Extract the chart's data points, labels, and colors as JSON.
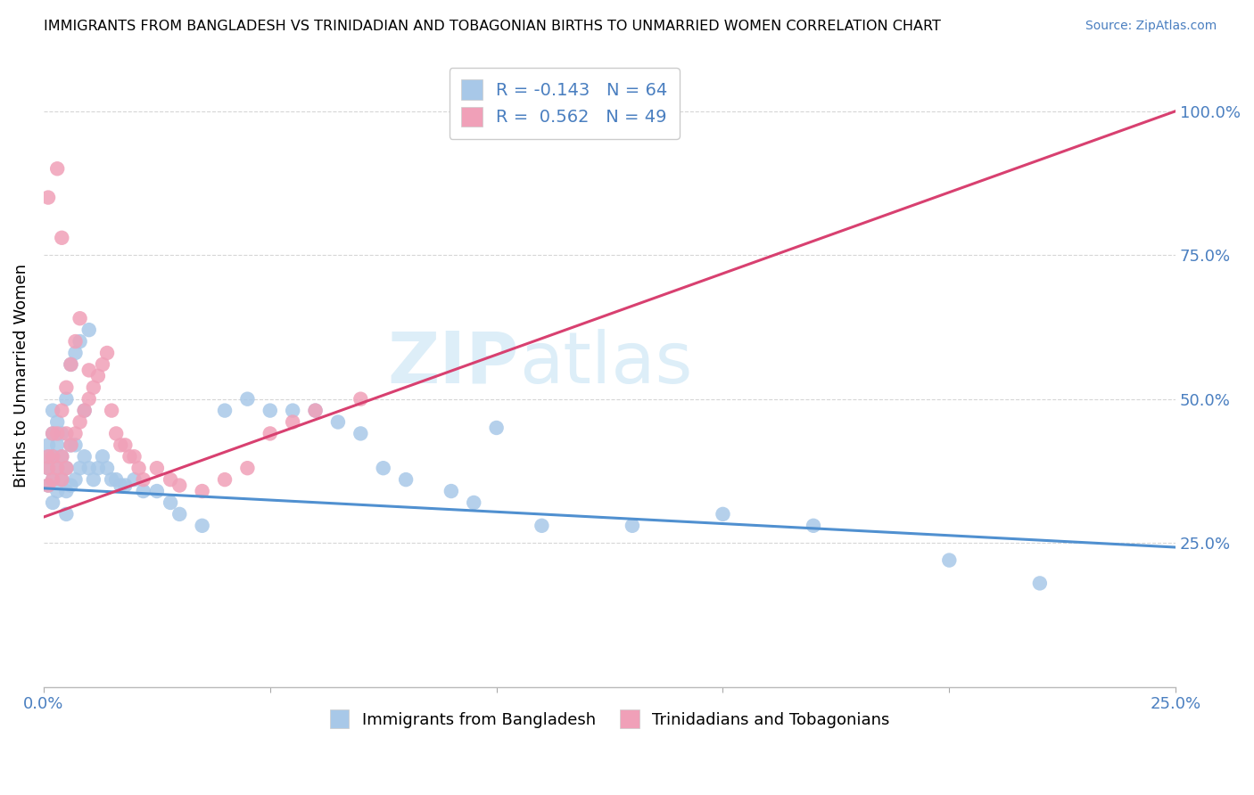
{
  "title": "IMMIGRANTS FROM BANGLADESH VS TRINIDADIAN AND TOBAGONIAN BIRTHS TO UNMARRIED WOMEN CORRELATION CHART",
  "source": "Source: ZipAtlas.com",
  "ylabel": "Births to Unmarried Women",
  "xmin": 0.0,
  "xmax": 0.25,
  "ymin": 0.0,
  "ymax": 1.08,
  "ytick_values": [
    0.25,
    0.5,
    0.75,
    1.0
  ],
  "ytick_labels": [
    "25.0%",
    "50.0%",
    "75.0%",
    "100.0%"
  ],
  "blue_color": "#a8c8e8",
  "pink_color": "#f0a0b8",
  "blue_line_color": "#5090d0",
  "pink_line_color": "#d84070",
  "watermark_color": "#ddeef8",
  "legend_R1": "-0.143",
  "legend_N1": "64",
  "legend_R2": "0.562",
  "legend_N2": "49",
  "legend_label1": "Immigrants from Bangladesh",
  "legend_label2": "Trinidadians and Tobagonians",
  "title_fontsize": 11.5,
  "axis_label_fontsize": 13,
  "legend_fontsize": 14,
  "tick_label_fontsize": 13,
  "source_fontsize": 10,
  "blue_trend": [
    0.345,
    -0.41
  ],
  "pink_trend": [
    0.295,
    2.82
  ],
  "blue_x": [
    0.001,
    0.001,
    0.001,
    0.001,
    0.002,
    0.002,
    0.002,
    0.002,
    0.002,
    0.003,
    0.003,
    0.003,
    0.003,
    0.004,
    0.004,
    0.004,
    0.005,
    0.005,
    0.005,
    0.005,
    0.006,
    0.006,
    0.006,
    0.007,
    0.007,
    0.007,
    0.008,
    0.008,
    0.009,
    0.009,
    0.01,
    0.01,
    0.011,
    0.012,
    0.013,
    0.014,
    0.015,
    0.016,
    0.017,
    0.018,
    0.02,
    0.022,
    0.025,
    0.028,
    0.03,
    0.035,
    0.04,
    0.045,
    0.05,
    0.055,
    0.06,
    0.065,
    0.07,
    0.075,
    0.08,
    0.09,
    0.095,
    0.1,
    0.11,
    0.13,
    0.15,
    0.17,
    0.2,
    0.22
  ],
  "blue_y": [
    0.35,
    0.38,
    0.4,
    0.42,
    0.32,
    0.36,
    0.4,
    0.44,
    0.48,
    0.34,
    0.38,
    0.42,
    0.46,
    0.36,
    0.4,
    0.44,
    0.3,
    0.34,
    0.38,
    0.5,
    0.35,
    0.42,
    0.56,
    0.36,
    0.42,
    0.58,
    0.38,
    0.6,
    0.4,
    0.48,
    0.38,
    0.62,
    0.36,
    0.38,
    0.4,
    0.38,
    0.36,
    0.36,
    0.35,
    0.35,
    0.36,
    0.34,
    0.34,
    0.32,
    0.3,
    0.28,
    0.48,
    0.5,
    0.48,
    0.48,
    0.48,
    0.46,
    0.44,
    0.38,
    0.36,
    0.34,
    0.32,
    0.45,
    0.28,
    0.28,
    0.3,
    0.28,
    0.22,
    0.18
  ],
  "pink_x": [
    0.001,
    0.001,
    0.001,
    0.001,
    0.002,
    0.002,
    0.002,
    0.003,
    0.003,
    0.003,
    0.004,
    0.004,
    0.004,
    0.004,
    0.005,
    0.005,
    0.005,
    0.006,
    0.006,
    0.007,
    0.007,
    0.008,
    0.008,
    0.009,
    0.01,
    0.01,
    0.011,
    0.012,
    0.013,
    0.014,
    0.015,
    0.016,
    0.017,
    0.018,
    0.019,
    0.02,
    0.021,
    0.022,
    0.025,
    0.028,
    0.03,
    0.035,
    0.04,
    0.045,
    0.05,
    0.055,
    0.06,
    0.07,
    0.095
  ],
  "pink_y": [
    0.35,
    0.38,
    0.4,
    0.85,
    0.36,
    0.4,
    0.44,
    0.38,
    0.44,
    0.9,
    0.36,
    0.4,
    0.48,
    0.78,
    0.38,
    0.44,
    0.52,
    0.42,
    0.56,
    0.44,
    0.6,
    0.46,
    0.64,
    0.48,
    0.5,
    0.55,
    0.52,
    0.54,
    0.56,
    0.58,
    0.48,
    0.44,
    0.42,
    0.42,
    0.4,
    0.4,
    0.38,
    0.36,
    0.38,
    0.36,
    0.35,
    0.34,
    0.36,
    0.38,
    0.44,
    0.46,
    0.48,
    0.5,
    0.97
  ]
}
